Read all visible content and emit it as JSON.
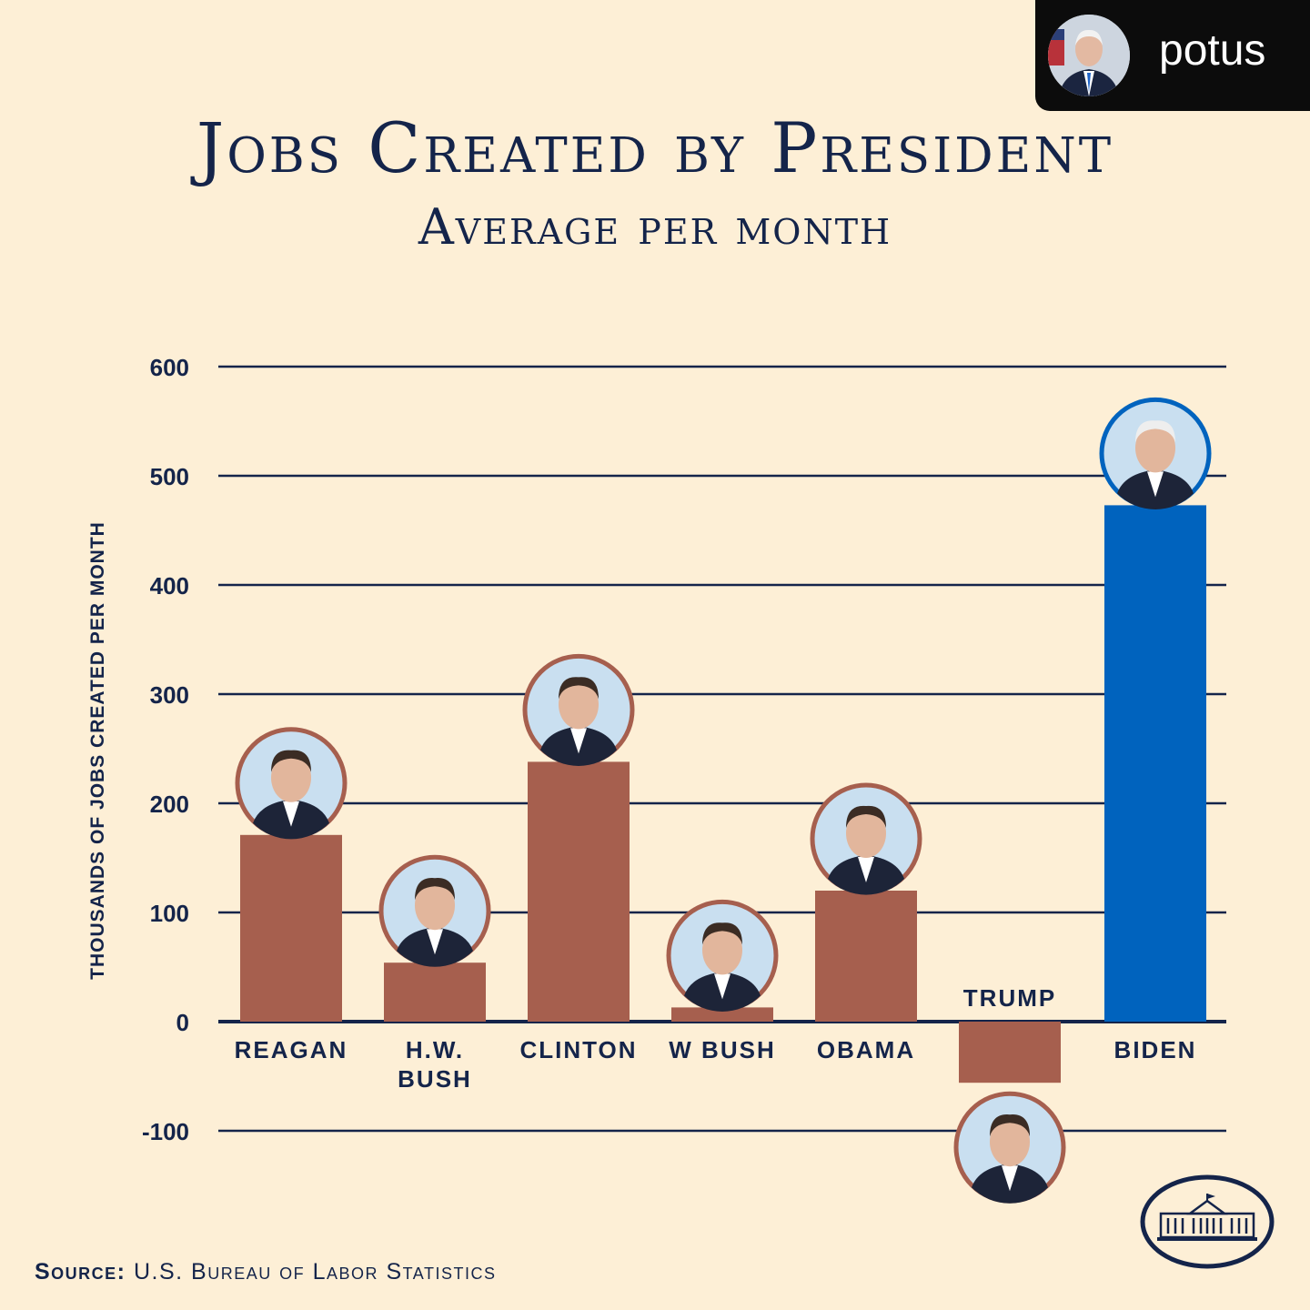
{
  "account": {
    "username": "potus"
  },
  "chart_data": {
    "type": "bar",
    "title": "Jobs Created by President",
    "subtitle": "Average per month",
    "ylabel": "Thousands of Jobs Created per Month",
    "xlabel": "",
    "ylim": [
      -100,
      600
    ],
    "yticks": [
      600,
      500,
      400,
      300,
      200,
      100,
      0,
      -100
    ],
    "grid": true,
    "categories": [
      "Reagan",
      "H.W. Bush",
      "Clinton",
      "W Bush",
      "Obama",
      "Trump",
      "Biden"
    ],
    "category_lines": [
      [
        "Reagan"
      ],
      [
        "H.W.",
        "Bush"
      ],
      [
        "Clinton"
      ],
      [
        "W Bush"
      ],
      [
        "Obama"
      ],
      [
        "Trump"
      ],
      [
        "Biden"
      ]
    ],
    "values": [
      171,
      54,
      238,
      13,
      120,
      -56,
      473
    ],
    "colors": {
      "default_bar": "#a65f4e",
      "highlight_bar": "#0063be",
      "axis": "#14244a",
      "portrait_ring": "#a65f4e",
      "highlight_ring": "#0063be",
      "portrait_fill": "#c9dff0"
    },
    "highlight": "Biden"
  },
  "source": {
    "label": "Source:",
    "text": "U.S. Bureau of Labor Statistics"
  },
  "icons": {
    "seal": "white-house-icon"
  }
}
